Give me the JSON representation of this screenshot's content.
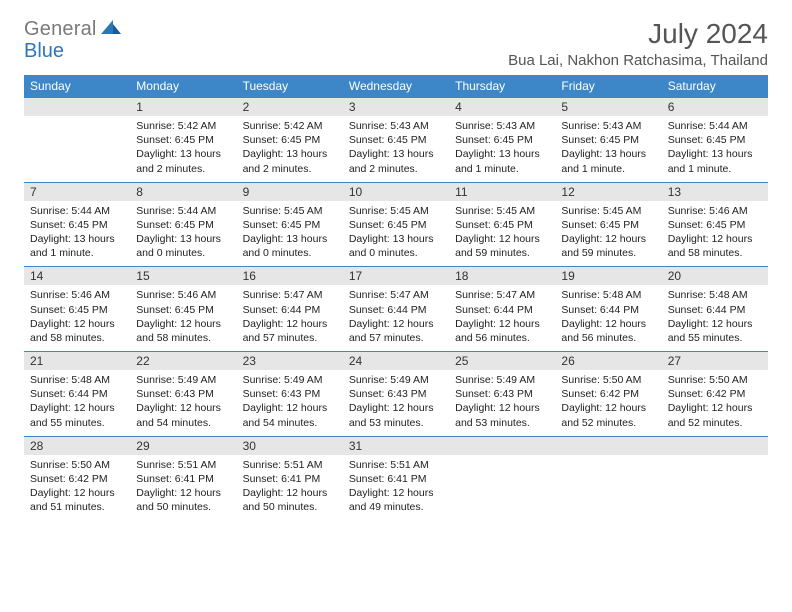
{
  "brand": {
    "part1": "General",
    "part2": "Blue"
  },
  "title": "July 2024",
  "location": "Bua Lai, Nakhon Ratchasima, Thailand",
  "colors": {
    "header_bg": "#3d87c9",
    "header_text": "#ffffff",
    "daynum_bg": "#e6e6e6",
    "rule": "#3d87c9",
    "logo_gray": "#7a7a7a",
    "logo_blue": "#2d77b8",
    "body_text": "#222222",
    "title_text": "#555555"
  },
  "dow": [
    "Sunday",
    "Monday",
    "Tuesday",
    "Wednesday",
    "Thursday",
    "Friday",
    "Saturday"
  ],
  "weeks": [
    [
      null,
      {
        "n": "1",
        "sr": "Sunrise: 5:42 AM",
        "ss": "Sunset: 6:45 PM",
        "d1": "Daylight: 13 hours",
        "d2": "and 2 minutes."
      },
      {
        "n": "2",
        "sr": "Sunrise: 5:42 AM",
        "ss": "Sunset: 6:45 PM",
        "d1": "Daylight: 13 hours",
        "d2": "and 2 minutes."
      },
      {
        "n": "3",
        "sr": "Sunrise: 5:43 AM",
        "ss": "Sunset: 6:45 PM",
        "d1": "Daylight: 13 hours",
        "d2": "and 2 minutes."
      },
      {
        "n": "4",
        "sr": "Sunrise: 5:43 AM",
        "ss": "Sunset: 6:45 PM",
        "d1": "Daylight: 13 hours",
        "d2": "and 1 minute."
      },
      {
        "n": "5",
        "sr": "Sunrise: 5:43 AM",
        "ss": "Sunset: 6:45 PM",
        "d1": "Daylight: 13 hours",
        "d2": "and 1 minute."
      },
      {
        "n": "6",
        "sr": "Sunrise: 5:44 AM",
        "ss": "Sunset: 6:45 PM",
        "d1": "Daylight: 13 hours",
        "d2": "and 1 minute."
      }
    ],
    [
      {
        "n": "7",
        "sr": "Sunrise: 5:44 AM",
        "ss": "Sunset: 6:45 PM",
        "d1": "Daylight: 13 hours",
        "d2": "and 1 minute."
      },
      {
        "n": "8",
        "sr": "Sunrise: 5:44 AM",
        "ss": "Sunset: 6:45 PM",
        "d1": "Daylight: 13 hours",
        "d2": "and 0 minutes."
      },
      {
        "n": "9",
        "sr": "Sunrise: 5:45 AM",
        "ss": "Sunset: 6:45 PM",
        "d1": "Daylight: 13 hours",
        "d2": "and 0 minutes."
      },
      {
        "n": "10",
        "sr": "Sunrise: 5:45 AM",
        "ss": "Sunset: 6:45 PM",
        "d1": "Daylight: 13 hours",
        "d2": "and 0 minutes."
      },
      {
        "n": "11",
        "sr": "Sunrise: 5:45 AM",
        "ss": "Sunset: 6:45 PM",
        "d1": "Daylight: 12 hours",
        "d2": "and 59 minutes."
      },
      {
        "n": "12",
        "sr": "Sunrise: 5:45 AM",
        "ss": "Sunset: 6:45 PM",
        "d1": "Daylight: 12 hours",
        "d2": "and 59 minutes."
      },
      {
        "n": "13",
        "sr": "Sunrise: 5:46 AM",
        "ss": "Sunset: 6:45 PM",
        "d1": "Daylight: 12 hours",
        "d2": "and 58 minutes."
      }
    ],
    [
      {
        "n": "14",
        "sr": "Sunrise: 5:46 AM",
        "ss": "Sunset: 6:45 PM",
        "d1": "Daylight: 12 hours",
        "d2": "and 58 minutes."
      },
      {
        "n": "15",
        "sr": "Sunrise: 5:46 AM",
        "ss": "Sunset: 6:45 PM",
        "d1": "Daylight: 12 hours",
        "d2": "and 58 minutes."
      },
      {
        "n": "16",
        "sr": "Sunrise: 5:47 AM",
        "ss": "Sunset: 6:44 PM",
        "d1": "Daylight: 12 hours",
        "d2": "and 57 minutes."
      },
      {
        "n": "17",
        "sr": "Sunrise: 5:47 AM",
        "ss": "Sunset: 6:44 PM",
        "d1": "Daylight: 12 hours",
        "d2": "and 57 minutes."
      },
      {
        "n": "18",
        "sr": "Sunrise: 5:47 AM",
        "ss": "Sunset: 6:44 PM",
        "d1": "Daylight: 12 hours",
        "d2": "and 56 minutes."
      },
      {
        "n": "19",
        "sr": "Sunrise: 5:48 AM",
        "ss": "Sunset: 6:44 PM",
        "d1": "Daylight: 12 hours",
        "d2": "and 56 minutes."
      },
      {
        "n": "20",
        "sr": "Sunrise: 5:48 AM",
        "ss": "Sunset: 6:44 PM",
        "d1": "Daylight: 12 hours",
        "d2": "and 55 minutes."
      }
    ],
    [
      {
        "n": "21",
        "sr": "Sunrise: 5:48 AM",
        "ss": "Sunset: 6:44 PM",
        "d1": "Daylight: 12 hours",
        "d2": "and 55 minutes."
      },
      {
        "n": "22",
        "sr": "Sunrise: 5:49 AM",
        "ss": "Sunset: 6:43 PM",
        "d1": "Daylight: 12 hours",
        "d2": "and 54 minutes."
      },
      {
        "n": "23",
        "sr": "Sunrise: 5:49 AM",
        "ss": "Sunset: 6:43 PM",
        "d1": "Daylight: 12 hours",
        "d2": "and 54 minutes."
      },
      {
        "n": "24",
        "sr": "Sunrise: 5:49 AM",
        "ss": "Sunset: 6:43 PM",
        "d1": "Daylight: 12 hours",
        "d2": "and 53 minutes."
      },
      {
        "n": "25",
        "sr": "Sunrise: 5:49 AM",
        "ss": "Sunset: 6:43 PM",
        "d1": "Daylight: 12 hours",
        "d2": "and 53 minutes."
      },
      {
        "n": "26",
        "sr": "Sunrise: 5:50 AM",
        "ss": "Sunset: 6:42 PM",
        "d1": "Daylight: 12 hours",
        "d2": "and 52 minutes."
      },
      {
        "n": "27",
        "sr": "Sunrise: 5:50 AM",
        "ss": "Sunset: 6:42 PM",
        "d1": "Daylight: 12 hours",
        "d2": "and 52 minutes."
      }
    ],
    [
      {
        "n": "28",
        "sr": "Sunrise: 5:50 AM",
        "ss": "Sunset: 6:42 PM",
        "d1": "Daylight: 12 hours",
        "d2": "and 51 minutes."
      },
      {
        "n": "29",
        "sr": "Sunrise: 5:51 AM",
        "ss": "Sunset: 6:41 PM",
        "d1": "Daylight: 12 hours",
        "d2": "and 50 minutes."
      },
      {
        "n": "30",
        "sr": "Sunrise: 5:51 AM",
        "ss": "Sunset: 6:41 PM",
        "d1": "Daylight: 12 hours",
        "d2": "and 50 minutes."
      },
      {
        "n": "31",
        "sr": "Sunrise: 5:51 AM",
        "ss": "Sunset: 6:41 PM",
        "d1": "Daylight: 12 hours",
        "d2": "and 49 minutes."
      },
      null,
      null,
      null
    ]
  ]
}
